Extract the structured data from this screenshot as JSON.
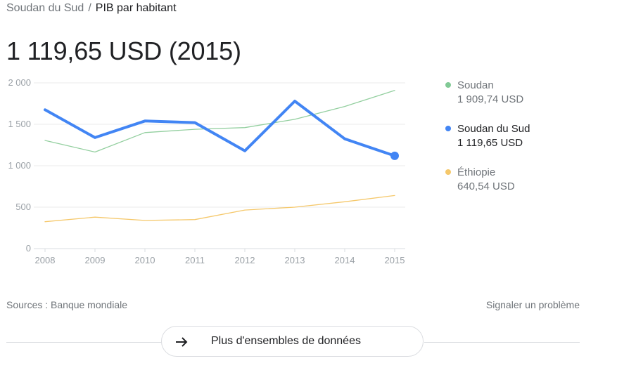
{
  "breadcrumb": {
    "parent": "Soudan du Sud",
    "separator": "/",
    "current": "PIB par habitant"
  },
  "headline": "1 119,65 USD (2015)",
  "chart_data": {
    "type": "line",
    "x": [
      "2008",
      "2009",
      "2010",
      "2011",
      "2012",
      "2013",
      "2014",
      "2015"
    ],
    "ylim": [
      0,
      2000
    ],
    "yticks": [
      0,
      500,
      1000,
      1500,
      2000
    ],
    "ytick_labels": [
      "0",
      "500",
      "1 000",
      "1 500",
      "2 000"
    ],
    "grid": true,
    "legend_position": "right",
    "highlighted_series": "Soudan du Sud",
    "series": [
      {
        "name": "Soudan",
        "color": "#93cf9f",
        "values": [
          1305,
          1165,
          1400,
          1440,
          1460,
          1560,
          1715,
          1909.74
        ]
      },
      {
        "name": "Soudan du Sud",
        "color": "#4285f4",
        "values": [
          1675,
          1340,
          1540,
          1520,
          1180,
          1780,
          1325,
          1119.65
        ]
      },
      {
        "name": "Éthiopie",
        "color": "#f5c86b",
        "values": [
          325,
          380,
          340,
          350,
          465,
          500,
          565,
          640.54
        ]
      }
    ]
  },
  "legend": [
    {
      "name": "Soudan",
      "value": "1 909,74 USD",
      "color": "#81c995",
      "active": false
    },
    {
      "name": "Soudan du Sud",
      "value": "1 119,65 USD",
      "color": "#4285f4",
      "active": true
    },
    {
      "name": "Éthiopie",
      "value": "640,54 USD",
      "color": "#f5c86b",
      "active": false
    }
  ],
  "footer": {
    "sources": "Sources : Banque mondiale",
    "report": "Signaler un problème",
    "more_button": "Plus d'ensembles de données"
  }
}
